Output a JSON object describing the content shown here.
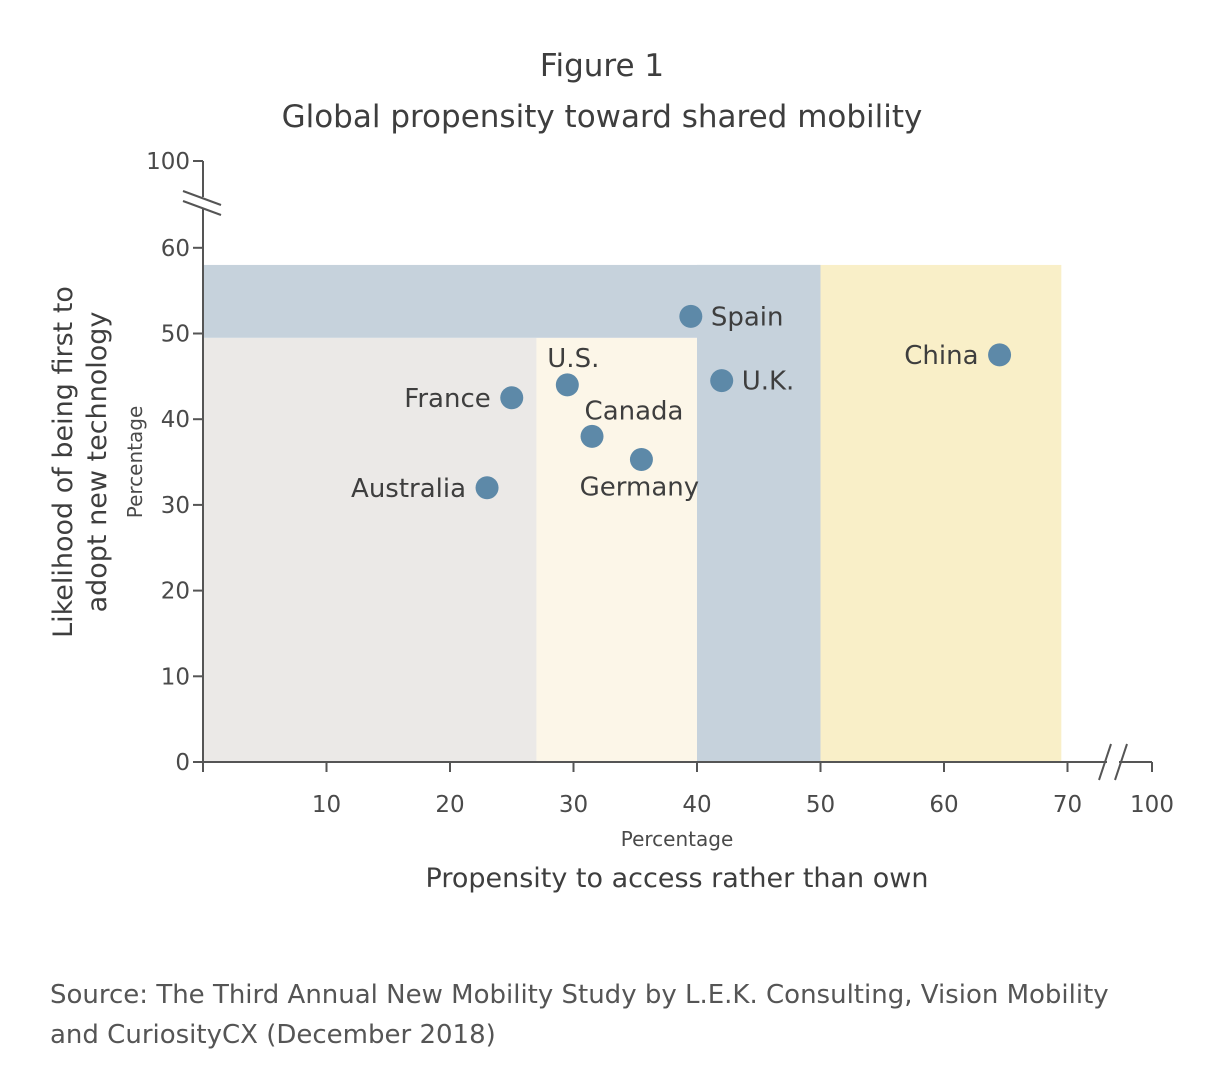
{
  "figure_label": "Figure 1",
  "source": {
    "line1": "Source: The Third Annual New Mobility Study by L.E.K. Consulting, Vision Mobility",
    "line2": "and CuriosityCX (December 2018)"
  },
  "colors": {
    "grey_zone": "#ebe9e7",
    "cream_zone": "#fcf6e8",
    "blue_zone": "#c6d2dc",
    "yellow_zone": "#f9efc8",
    "marker": "#5d89a8",
    "axis": "#555555",
    "text": "#3e3e3e"
  },
  "chart_data": {
    "type": "scatter",
    "title": "Global propensity toward shared mobility",
    "xlabel": "Propensity to access rather than own",
    "xunit": "Percentage",
    "ylabel": [
      "Likelihood of being first to",
      "adopt new technology"
    ],
    "yunit": "Percentage",
    "xticks": [
      "10",
      "20",
      "30",
      "40",
      "50",
      "60",
      "70",
      "100"
    ],
    "yticks": [
      "0",
      "10",
      "20",
      "30",
      "40",
      "50",
      "60",
      "100"
    ],
    "x_axis_break": true,
    "y_axis_break": true,
    "xlim": [
      0,
      70
    ],
    "ylim": [
      0,
      60
    ],
    "grid": false,
    "legend": "none",
    "zones": [
      {
        "name": "grey",
        "x": [
          0,
          27
        ],
        "y": [
          0,
          49.5
        ],
        "color": "#ebe9e7"
      },
      {
        "name": "cream",
        "x": [
          27,
          40
        ],
        "y": [
          0,
          49.5
        ],
        "color": "#fcf6e8"
      },
      {
        "name": "yellow",
        "x": [
          50,
          69.5
        ],
        "y": [
          0,
          58
        ],
        "color": "#f9efc8"
      },
      {
        "name": "blue-band",
        "x": [
          0,
          50
        ],
        "y": [
          49.5,
          58
        ],
        "color": "#c6d2dc"
      },
      {
        "name": "blue-column",
        "x": [
          40,
          50
        ],
        "y": [
          0,
          58
        ],
        "color": "#c6d2dc"
      }
    ],
    "points": [
      {
        "label": "Spain",
        "x": 39.5,
        "y": 52,
        "label_pos": "right"
      },
      {
        "label": "China",
        "x": 64.5,
        "y": 47.5,
        "label_pos": "left"
      },
      {
        "label": "U.K.",
        "x": 42,
        "y": 44.5,
        "label_pos": "right"
      },
      {
        "label": "U.S.",
        "x": 29.5,
        "y": 44,
        "label_pos": "above"
      },
      {
        "label": "France",
        "x": 25,
        "y": 42.5,
        "label_pos": "left"
      },
      {
        "label": "Canada",
        "x": 31.5,
        "y": 38,
        "label_pos": "upper-right"
      },
      {
        "label": "Germany",
        "x": 35.5,
        "y": 35.3,
        "label_pos": "below"
      },
      {
        "label": "Australia",
        "x": 23,
        "y": 32,
        "label_pos": "left"
      }
    ]
  }
}
